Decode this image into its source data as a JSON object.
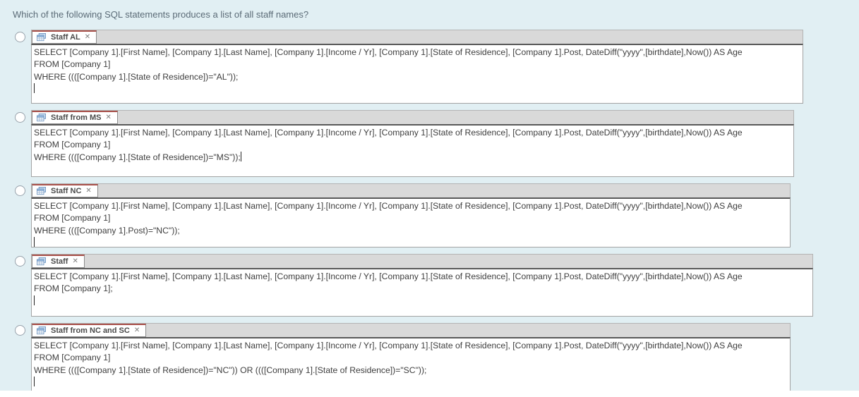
{
  "question": {
    "text": "Which of the following SQL statements produces a list of all staff names?"
  },
  "icons": {
    "close": "✕",
    "query_icon": "datasheet-icon"
  },
  "colors": {
    "page_background": "#e1eff3",
    "tab_active_top": "#a8504a",
    "editor_splitter": "#595959"
  },
  "options": [
    {
      "tab_label": "Staff AL",
      "caret": "newline",
      "sql_lines": [
        "SELECT [Company 1].[First Name], [Company 1].[Last Name], [Company 1].[Income / Yr], [Company 1].[State of Residence], [Company 1].Post, DateDiff(\"yyyy\",[birthdate],Now()) AS Age",
        "FROM [Company 1]",
        "WHERE ((([Company 1].[State of Residence])=\"AL\"));"
      ]
    },
    {
      "tab_label": "Staff from MS",
      "caret": "inline",
      "sql_lines": [
        "SELECT [Company 1].[First Name], [Company 1].[Last Name], [Company 1].[Income / Yr], [Company 1].[State of Residence], [Company 1].Post, DateDiff(\"yyyy\",[birthdate],Now()) AS Age",
        "FROM [Company 1]",
        "WHERE ((([Company 1].[State of Residence])=\"MS\"));"
      ]
    },
    {
      "tab_label": "Staff NC",
      "caret": "newline",
      "sql_lines": [
        "SELECT [Company 1].[First Name], [Company 1].[Last Name], [Company 1].[Income / Yr], [Company 1].[State of Residence], [Company 1].Post, DateDiff(\"yyyy\",[birthdate],Now()) AS Age",
        "FROM [Company 1]",
        "WHERE ((([Company 1].Post)=\"NC\"));"
      ]
    },
    {
      "tab_label": "Staff",
      "caret": "newline",
      "sql_lines": [
        "SELECT [Company 1].[First Name], [Company 1].[Last Name], [Company 1].[Income / Yr], [Company 1].[State of Residence], [Company 1].Post, DateDiff(\"yyyy\",[birthdate],Now()) AS Age",
        "FROM [Company 1];"
      ]
    },
    {
      "tab_label": "Staff from NC and SC",
      "caret": "newline",
      "sql_lines": [
        "SELECT [Company 1].[First Name], [Company 1].[Last Name], [Company 1].[Income / Yr], [Company 1].[State of Residence], [Company 1].Post, DateDiff(\"yyyy\",[birthdate],Now()) AS Age",
        "FROM [Company 1]",
        "WHERE ((([Company 1].[State of Residence])=\"NC\")) OR ((([Company 1].[State of Residence])=\"SC\"));"
      ]
    }
  ]
}
